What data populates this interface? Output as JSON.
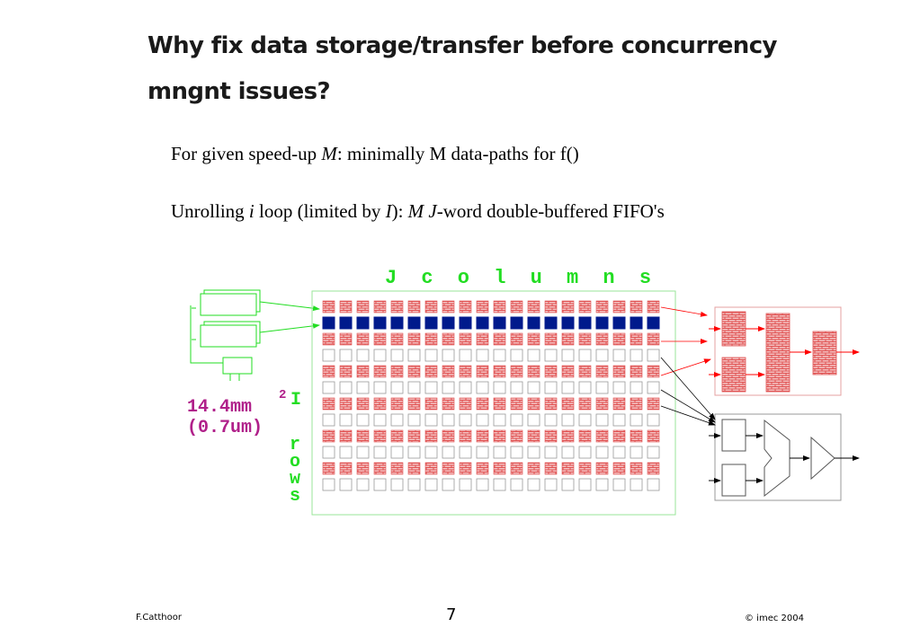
{
  "slide": {
    "title": "Why fix data storage/transfer before concurrency mngnt issues?",
    "bullet1": {
      "pre": "For given speed-up ",
      "em": "M",
      "post": ": minimally M data-paths for f()"
    },
    "bullet2": {
      "pre": "Unrolling ",
      "em1": "i",
      "mid1": " loop (limited by ",
      "em2": "I",
      "mid2": "): ",
      "em3": "M J",
      "post": "-word double-buffered FIFO's"
    }
  },
  "diagram": {
    "columns_label": "J columns",
    "rows_label_letter": "I",
    "rows_label_rest": "rows",
    "area_value": "14.4mm",
    "area_superscript": "2",
    "area_tech": "(0.7um)",
    "grid_columns": 20,
    "grid_rows": [
      "brick",
      "filled",
      "brick",
      "empty",
      "brick",
      "empty",
      "brick",
      "empty",
      "brick",
      "empty",
      "brick",
      "empty"
    ],
    "colors": {
      "label_green": "#22dd22",
      "area_magenta": "#b0208a",
      "filled_blue": "#001a8c",
      "brick_red": "#e05050",
      "arrow_red": "#ff0000",
      "frame_green": "#99e699"
    }
  },
  "footer": {
    "author": "F.Catthoor",
    "page": "7",
    "copyright": "© imec 2004"
  }
}
